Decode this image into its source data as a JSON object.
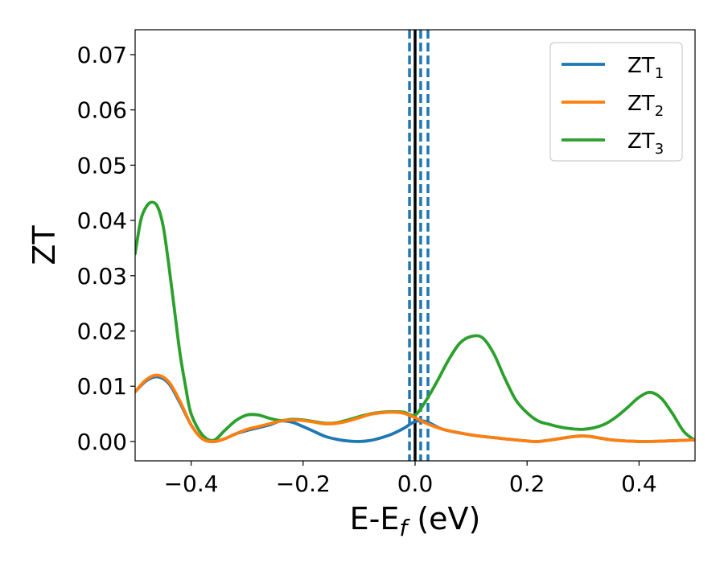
{
  "chart_data": {
    "type": "line",
    "title": "",
    "xlabel": "E-E",
    "xlabel_sub": "f",
    "xlabel_unit": " (eV)",
    "ylabel": "ZT",
    "xlim": [
      -0.5,
      0.5
    ],
    "ylim": [
      -0.0035,
      0.0745
    ],
    "xticks": [
      -0.4,
      -0.2,
      0.0,
      0.2,
      0.4
    ],
    "xtick_labels": [
      "−0.4",
      "−0.2",
      "0.0",
      "0.2",
      "0.4"
    ],
    "yticks": [
      0.0,
      0.01,
      0.02,
      0.03,
      0.04,
      0.05,
      0.06,
      0.07
    ],
    "ytick_labels": [
      "0.00",
      "0.01",
      "0.02",
      "0.03",
      "0.04",
      "0.05",
      "0.06",
      "0.07"
    ],
    "grid": false,
    "legend_position": "top-right",
    "vertical_lines": [
      {
        "x": 0.0,
        "style": "solid",
        "color": "#000000"
      },
      {
        "x": -0.01,
        "style": "dashed",
        "color": "#1f77b4"
      },
      {
        "x": 0.01,
        "style": "dashed",
        "color": "#1f77b4"
      },
      {
        "x": 0.023,
        "style": "dashed",
        "color": "#1f77b4"
      }
    ],
    "series": [
      {
        "name": "ZT",
        "sub": "1",
        "color": "#1f77b4",
        "x": [
          -0.5,
          -0.48,
          -0.46,
          -0.44,
          -0.42,
          -0.4,
          -0.38,
          -0.36,
          -0.34,
          -0.32,
          -0.3,
          -0.28,
          -0.26,
          -0.24,
          -0.22,
          -0.2,
          -0.18,
          -0.16,
          -0.14,
          -0.12,
          -0.1,
          -0.08,
          -0.06,
          -0.04,
          -0.02,
          0.0,
          0.02,
          0.05,
          0.1,
          0.15,
          0.2,
          0.22,
          0.25,
          0.3,
          0.35,
          0.4,
          0.45,
          0.5
        ],
        "y": [
          0.009,
          0.011,
          0.0117,
          0.0105,
          0.007,
          0.003,
          0.0005,
          0.0,
          0.0005,
          0.0014,
          0.002,
          0.0025,
          0.003,
          0.0037,
          0.0035,
          0.0027,
          0.0018,
          0.0009,
          0.0004,
          0.0001,
          0.0,
          0.0002,
          0.0007,
          0.0014,
          0.0024,
          0.0036,
          0.0036,
          0.0022,
          0.0012,
          0.0006,
          0.0001,
          0.0,
          0.0004,
          0.001,
          0.0003,
          0.0,
          0.0001,
          0.0003
        ]
      },
      {
        "name": "ZT",
        "sub": "2",
        "color": "#ff7f0e",
        "x": [
          -0.5,
          -0.48,
          -0.46,
          -0.44,
          -0.42,
          -0.4,
          -0.38,
          -0.36,
          -0.34,
          -0.32,
          -0.3,
          -0.28,
          -0.26,
          -0.24,
          -0.22,
          -0.2,
          -0.18,
          -0.16,
          -0.14,
          -0.12,
          -0.1,
          -0.08,
          -0.06,
          -0.04,
          -0.02,
          0.0,
          0.02,
          0.05,
          0.1,
          0.15,
          0.2,
          0.22,
          0.25,
          0.3,
          0.35,
          0.4,
          0.45,
          0.5
        ],
        "y": [
          0.009,
          0.0112,
          0.012,
          0.0108,
          0.0073,
          0.003,
          0.0005,
          0.0,
          0.0005,
          0.0014,
          0.0022,
          0.0027,
          0.0032,
          0.0037,
          0.0039,
          0.0038,
          0.0035,
          0.0032,
          0.0033,
          0.0037,
          0.0043,
          0.0049,
          0.0052,
          0.0053,
          0.0051,
          0.0043,
          0.0033,
          0.0022,
          0.0012,
          0.0006,
          0.0001,
          0.0,
          0.0004,
          0.001,
          0.0003,
          0.0,
          0.0001,
          0.0003
        ]
      },
      {
        "name": "ZT",
        "sub": "3",
        "color": "#2ca02c",
        "x": [
          -0.5,
          -0.49,
          -0.48,
          -0.47,
          -0.46,
          -0.45,
          -0.44,
          -0.43,
          -0.42,
          -0.41,
          -0.4,
          -0.38,
          -0.36,
          -0.34,
          -0.32,
          -0.3,
          -0.28,
          -0.26,
          -0.24,
          -0.22,
          -0.2,
          -0.18,
          -0.16,
          -0.14,
          -0.12,
          -0.1,
          -0.08,
          -0.06,
          -0.04,
          -0.02,
          0.0,
          0.02,
          0.04,
          0.06,
          0.08,
          0.1,
          0.12,
          0.14,
          0.16,
          0.18,
          0.2,
          0.22,
          0.24,
          0.26,
          0.28,
          0.3,
          0.32,
          0.34,
          0.36,
          0.38,
          0.4,
          0.42,
          0.44,
          0.46,
          0.48,
          0.5
        ],
        "y": [
          0.034,
          0.04,
          0.0425,
          0.0433,
          0.0425,
          0.039,
          0.032,
          0.024,
          0.016,
          0.01,
          0.005,
          0.0012,
          0.0002,
          0.002,
          0.0038,
          0.0048,
          0.0048,
          0.0042,
          0.0038,
          0.004,
          0.0039,
          0.0036,
          0.0033,
          0.0034,
          0.0039,
          0.0045,
          0.005,
          0.0053,
          0.0054,
          0.0053,
          0.0048,
          0.0075,
          0.011,
          0.0148,
          0.0178,
          0.019,
          0.0188,
          0.016,
          0.0115,
          0.0075,
          0.0052,
          0.0037,
          0.0031,
          0.0026,
          0.0023,
          0.0022,
          0.0025,
          0.0032,
          0.0045,
          0.0062,
          0.008,
          0.0089,
          0.0078,
          0.005,
          0.0018,
          0.0002
        ]
      }
    ]
  }
}
